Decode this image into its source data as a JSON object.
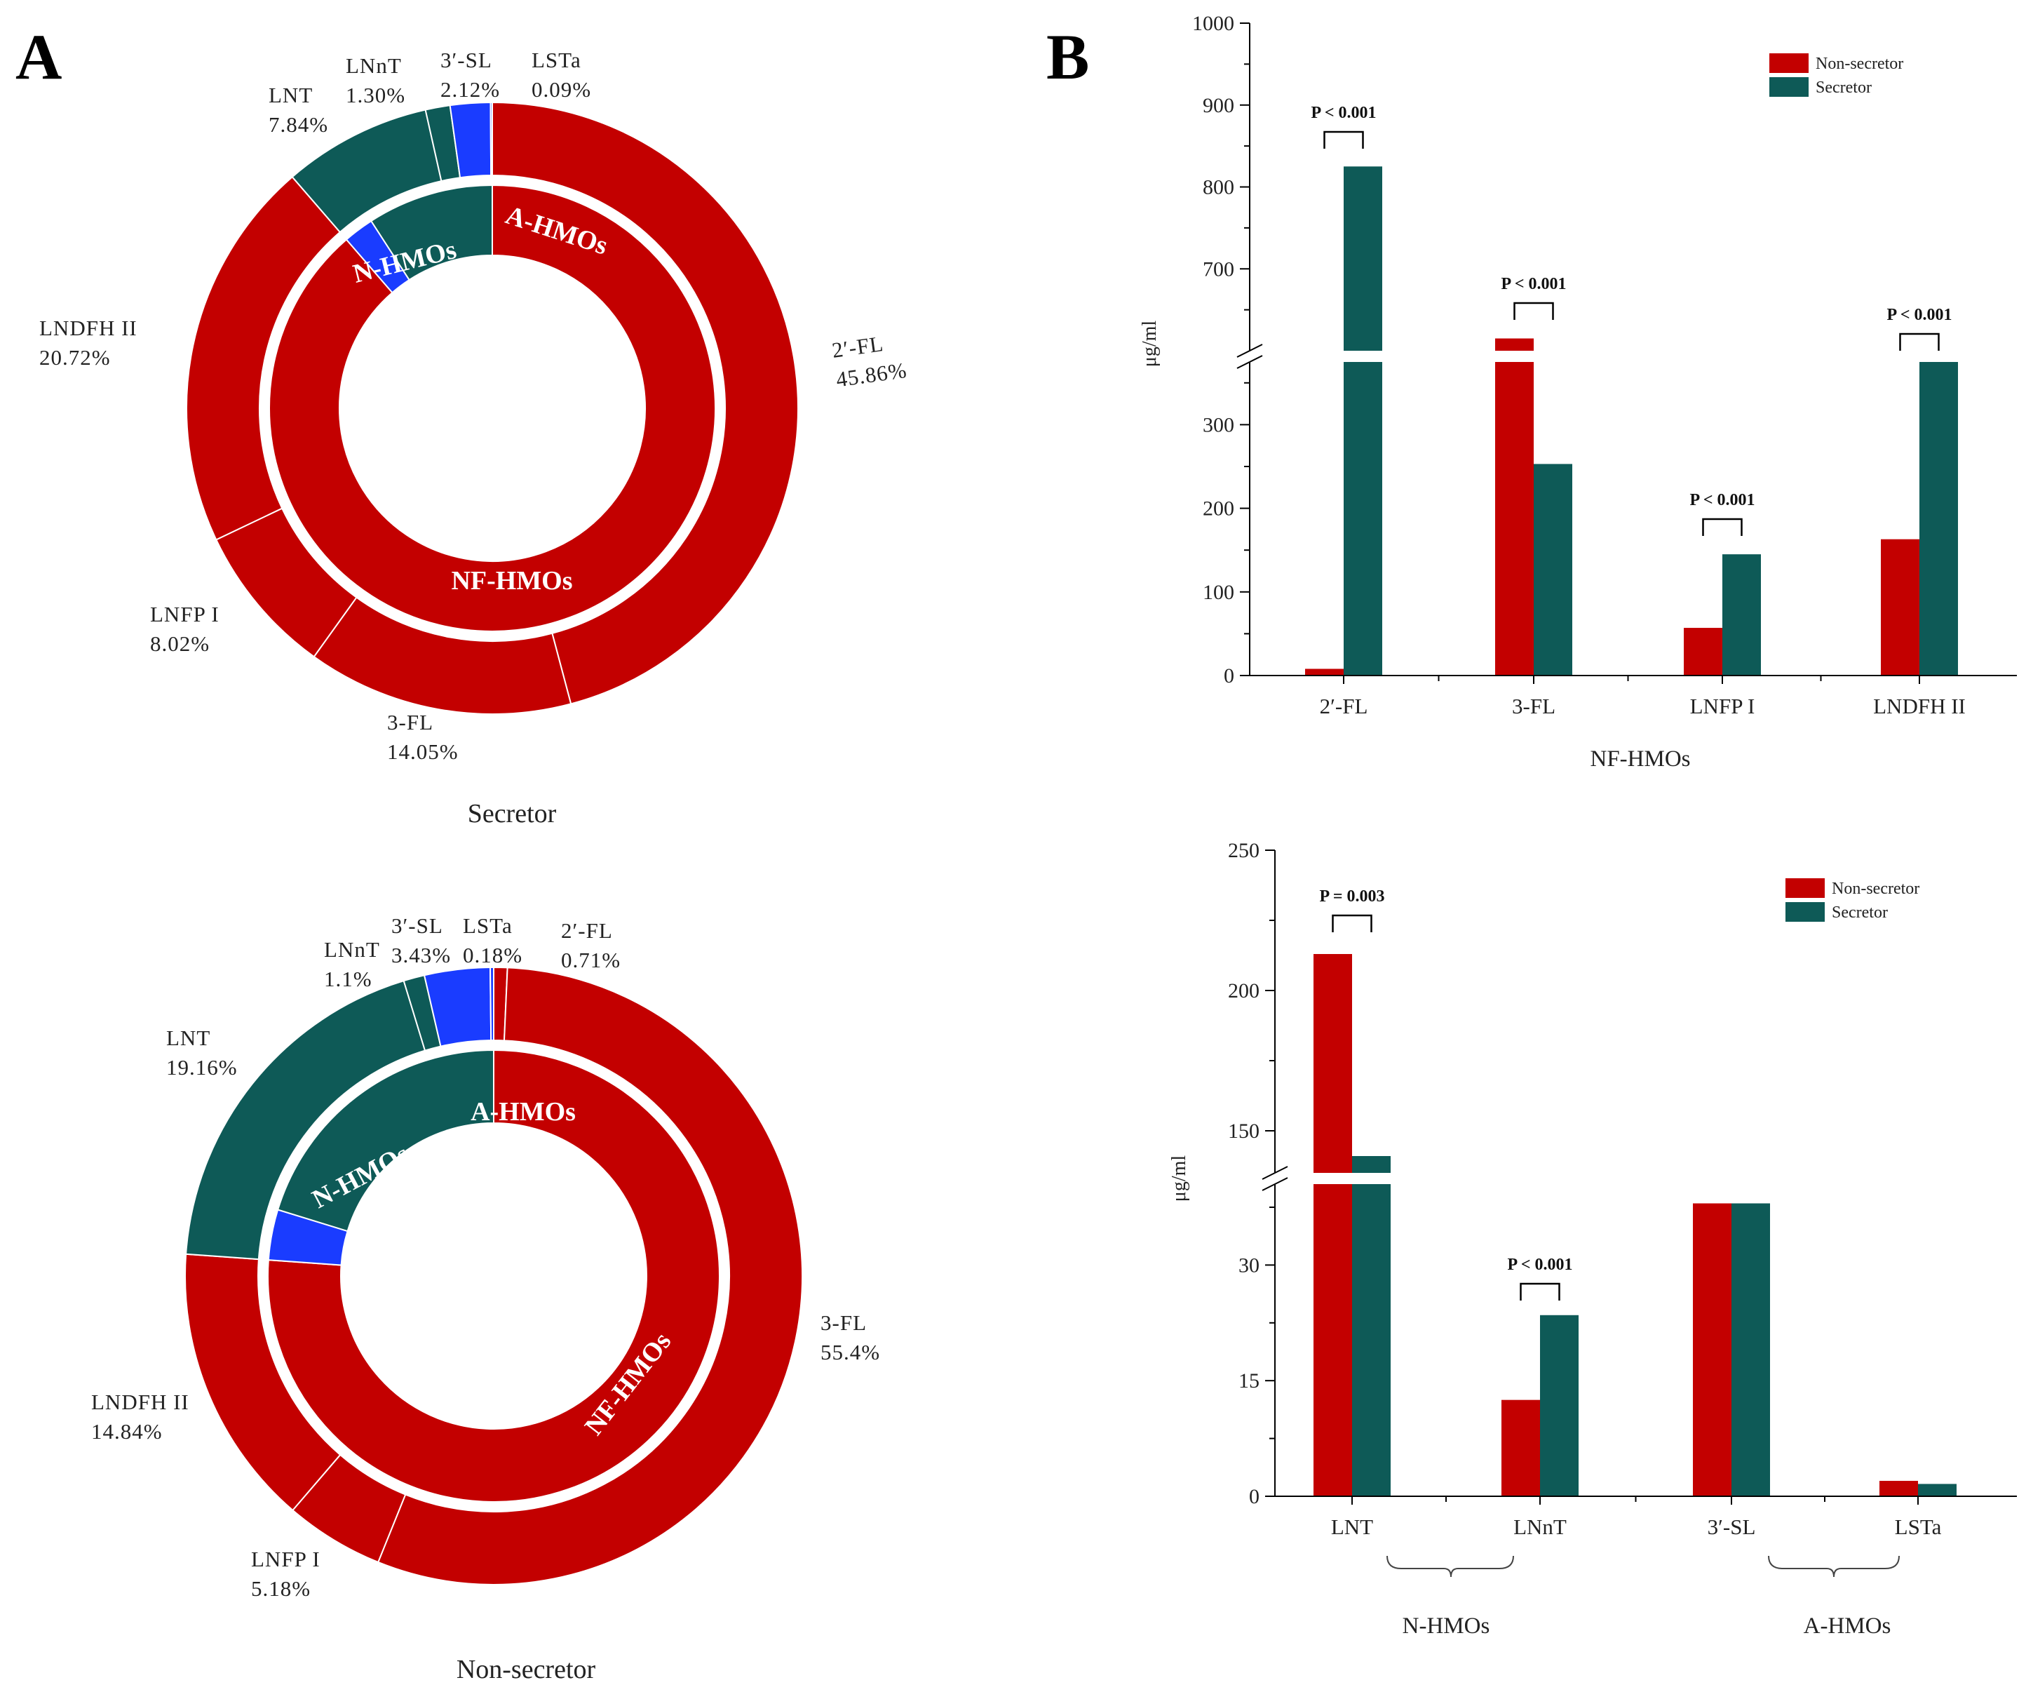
{
  "panels": {
    "a": "A",
    "b": "B"
  },
  "colors": {
    "non_secretor": "#c30000",
    "secretor": "#0e5a57",
    "a_hmos": "#1a3cff",
    "stroke": "#ffffff",
    "axis": "#000000"
  },
  "chart_data": [
    {
      "id": "donut_secretor",
      "type": "pie",
      "title": "Secretor",
      "inner_ring": [
        {
          "label": "NF-HMOs",
          "value": 88.65,
          "color": "#c30000"
        },
        {
          "label": "A-HMOs",
          "value": 2.21,
          "color": "#1a3cff"
        },
        {
          "label": "N-HMOs",
          "value": 9.14,
          "color": "#0e5a57"
        }
      ],
      "outer_ring": [
        {
          "name": "2′-FL",
          "pct": "45.86%",
          "value": 45.86,
          "color": "#c30000"
        },
        {
          "name": "3-FL",
          "pct": "14.05%",
          "value": 14.05,
          "color": "#c30000"
        },
        {
          "name": "LNFP I",
          "pct": "8.02%",
          "value": 8.02,
          "color": "#c30000"
        },
        {
          "name": "LNDFH II",
          "pct": "20.72%",
          "value": 20.72,
          "color": "#c30000"
        },
        {
          "name": "LNT",
          "pct": "7.84%",
          "value": 7.84,
          "color": "#0e5a57"
        },
        {
          "name": "LNnT",
          "pct": "1.30%",
          "value": 1.3,
          "color": "#0e5a57"
        },
        {
          "name": "3′-SL",
          "pct": "2.12%",
          "value": 2.12,
          "color": "#1a3cff"
        },
        {
          "name": "LSTa",
          "pct": "0.09%",
          "value": 0.09,
          "color": "#1a3cff"
        }
      ]
    },
    {
      "id": "donut_nonsecretor",
      "type": "pie",
      "title": "Non-secretor",
      "inner_ring": [
        {
          "label": "NF-HMOs",
          "value": 76.13,
          "color": "#c30000"
        },
        {
          "label": "A-HMOs",
          "value": 3.61,
          "color": "#1a3cff"
        },
        {
          "label": "N-HMOs",
          "value": 20.26,
          "color": "#0e5a57"
        }
      ],
      "outer_ring": [
        {
          "name": "2′-FL",
          "pct": "0.71%",
          "value": 0.71,
          "color": "#c30000"
        },
        {
          "name": "3-FL",
          "pct": "55.4%",
          "value": 55.4,
          "color": "#c30000"
        },
        {
          "name": "LNFP I",
          "pct": "5.18%",
          "value": 5.18,
          "color": "#c30000"
        },
        {
          "name": "LNDFH II",
          "pct": "14.84%",
          "value": 14.84,
          "color": "#c30000"
        },
        {
          "name": "LNT",
          "pct": "19.16%",
          "value": 19.16,
          "color": "#0e5a57"
        },
        {
          "name": "LNnT",
          "pct": "1.1%",
          "value": 1.1,
          "color": "#0e5a57"
        },
        {
          "name": "3′-SL",
          "pct": "3.43%",
          "value": 3.43,
          "color": "#1a3cff"
        },
        {
          "name": "LSTa",
          "pct": "0.18%",
          "value": 0.18,
          "color": "#1a3cff"
        }
      ]
    },
    {
      "id": "bar_nf_hmos",
      "type": "bar",
      "ylabel": "μg/ml",
      "group_label": "NF-HMOs",
      "categories": [
        "2′-FL",
        "3-FL",
        "LNFP I",
        "LNDFH II"
      ],
      "series": [
        {
          "name": "Non-secretor",
          "values": [
            8,
            615,
            57,
            163
          ]
        },
        {
          "name": "Secretor",
          "values": [
            825,
            253,
            145,
            375
          ]
        }
      ],
      "y_axis": {
        "lower_range": [
          0,
          375
        ],
        "lower_ticks": [
          "0",
          "100",
          "200",
          "300"
        ],
        "upper_range": [
          600,
          1000
        ],
        "upper_ticks": [
          "700",
          "800",
          "900",
          "1000"
        ]
      },
      "annotations": [
        {
          "category": "2′-FL",
          "text": "P < 0.001"
        },
        {
          "category": "3-FL",
          "text": "P < 0.001"
        },
        {
          "category": "LNFP I",
          "text": "P < 0.001"
        },
        {
          "category": "LNDFH II",
          "text": "P < 0.001"
        }
      ]
    },
    {
      "id": "bar_n_a_hmos",
      "type": "bar",
      "ylabel": "μg/ml",
      "categories": [
        "LNT",
        "LNnT",
        "3′-SL",
        "LSTa"
      ],
      "groups": [
        {
          "label": "N-HMOs",
          "categories": [
            "LNT",
            "LNnT"
          ]
        },
        {
          "label": "A-HMOs",
          "categories": [
            "3′-SL",
            "LSTa"
          ]
        }
      ],
      "series": [
        {
          "name": "Non-secretor",
          "values": [
            213,
            12.5,
            38,
            2
          ]
        },
        {
          "name": "Secretor",
          "values": [
            141,
            23.5,
            38,
            1.6
          ]
        }
      ],
      "y_axis": {
        "lower_range": [
          0,
          40.5
        ],
        "lower_ticks": [
          "0",
          "15",
          "30"
        ],
        "upper_range": [
          135,
          250
        ],
        "upper_ticks": [
          "150",
          "200",
          "250"
        ]
      },
      "annotations": [
        {
          "category": "LNT",
          "text": "P = 0.003"
        },
        {
          "category": "LNnT",
          "text": "P < 0.001"
        }
      ]
    }
  ]
}
